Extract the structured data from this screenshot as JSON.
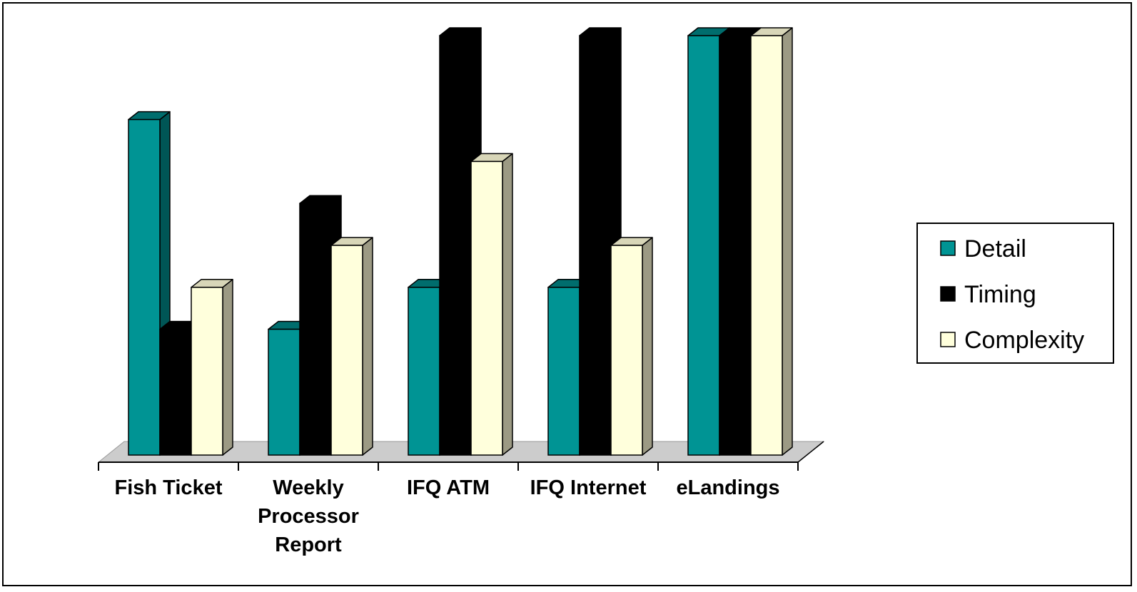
{
  "chart_data": {
    "type": "bar",
    "title": "",
    "xlabel": "",
    "ylabel": "",
    "ylim": [
      0,
      5
    ],
    "categories": [
      [
        "Fish Ticket"
      ],
      [
        "Weekly",
        "Processor",
        "Report"
      ],
      [
        "IFQ ATM"
      ],
      [
        "IFQ Internet"
      ],
      [
        "eLandings"
      ]
    ],
    "series": [
      {
        "name": "Detail",
        "values": [
          4,
          1.5,
          2,
          2,
          5
        ]
      },
      {
        "name": "Timing",
        "values": [
          1.5,
          3,
          5,
          5,
          5
        ]
      },
      {
        "name": "Complexity",
        "values": [
          2,
          2.5,
          3.5,
          2.5,
          5
        ]
      }
    ],
    "legend_position": "right",
    "grid": false,
    "three_d": true,
    "colors": {
      "Detail": {
        "front": "#009494",
        "side": "#005656",
        "top": "#006d6d"
      },
      "Timing": {
        "front": "#000000",
        "side": "#000000",
        "top": "#000000"
      },
      "Complexity": {
        "front": "#ffffdc",
        "side": "#9c9a84",
        "top": "#d8d6b8"
      },
      "floor": "#cccccc",
      "outline": "#000000"
    }
  }
}
